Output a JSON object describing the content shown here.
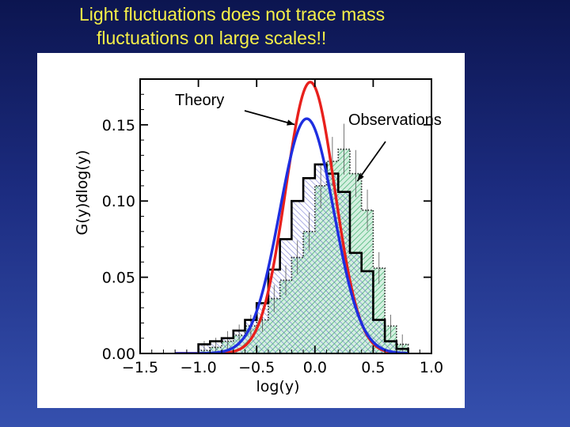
{
  "title": {
    "line1": "Light fluctuations does not trace mass",
    "line2": "fluctuations on large scales!!"
  },
  "colors": {
    "title": "#f6f048",
    "theory_red": "#e8201c",
    "theory_blue": "#1e2ee0",
    "obs_green_fill": "#5ec882",
    "obs_blue_fill": "#7c7fd8"
  },
  "chart_data": {
    "type": "histogram",
    "xlabel": "log(y)",
    "ylabel": "G(y)dlog(y)",
    "xlim": [
      -1.5,
      1.0
    ],
    "ylim": [
      0.0,
      0.18
    ],
    "xticks": [
      -1.5,
      -1.0,
      -0.5,
      0.0,
      0.5,
      1.0
    ],
    "xtick_labels": [
      "−1.5",
      "−1.0",
      "−0.5",
      "0.0",
      "0.5",
      "1.0"
    ],
    "yticks": [
      0.0,
      0.05,
      0.1,
      0.15
    ],
    "ytick_labels": [
      "0.00",
      "0.05",
      "0.10",
      "0.15"
    ],
    "grid": false,
    "annotations": [
      {
        "text": "Theory",
        "arrow_to": [
          -0.08,
          0.145
        ]
      },
      {
        "text": "Observations",
        "arrow_to": [
          0.33,
          0.112
        ]
      }
    ],
    "histograms": [
      {
        "style": "solid-black",
        "bin_edges": [
          -1.0,
          -0.9,
          -0.8,
          -0.7,
          -0.6,
          -0.5,
          -0.4,
          -0.3,
          -0.2,
          -0.1,
          0.0,
          0.1,
          0.2,
          0.3,
          0.4,
          0.5,
          0.6,
          0.7,
          0.8
        ],
        "values": [
          0.006,
          0.008,
          0.01,
          0.015,
          0.022,
          0.033,
          0.055,
          0.075,
          0.1,
          0.115,
          0.124,
          0.118,
          0.106,
          0.066,
          0.054,
          0.022,
          0.008,
          0.003
        ]
      },
      {
        "style": "dotted-green-hatch",
        "bin_edges": [
          -1.0,
          -0.9,
          -0.8,
          -0.7,
          -0.6,
          -0.5,
          -0.4,
          -0.3,
          -0.2,
          -0.1,
          0.0,
          0.1,
          0.2,
          0.3,
          0.4,
          0.5,
          0.6,
          0.7,
          0.8
        ],
        "values": [
          0.002,
          0.004,
          0.008,
          0.012,
          0.018,
          0.022,
          0.036,
          0.048,
          0.063,
          0.08,
          0.11,
          0.126,
          0.134,
          0.118,
          0.094,
          0.056,
          0.018,
          0.006
        ]
      }
    ],
    "curves": [
      {
        "color": "red",
        "mean": -0.04,
        "sigma": 0.21,
        "peak": 0.178
      },
      {
        "color": "blue",
        "mean": -0.07,
        "sigma": 0.232,
        "peak": 0.154
      }
    ]
  }
}
